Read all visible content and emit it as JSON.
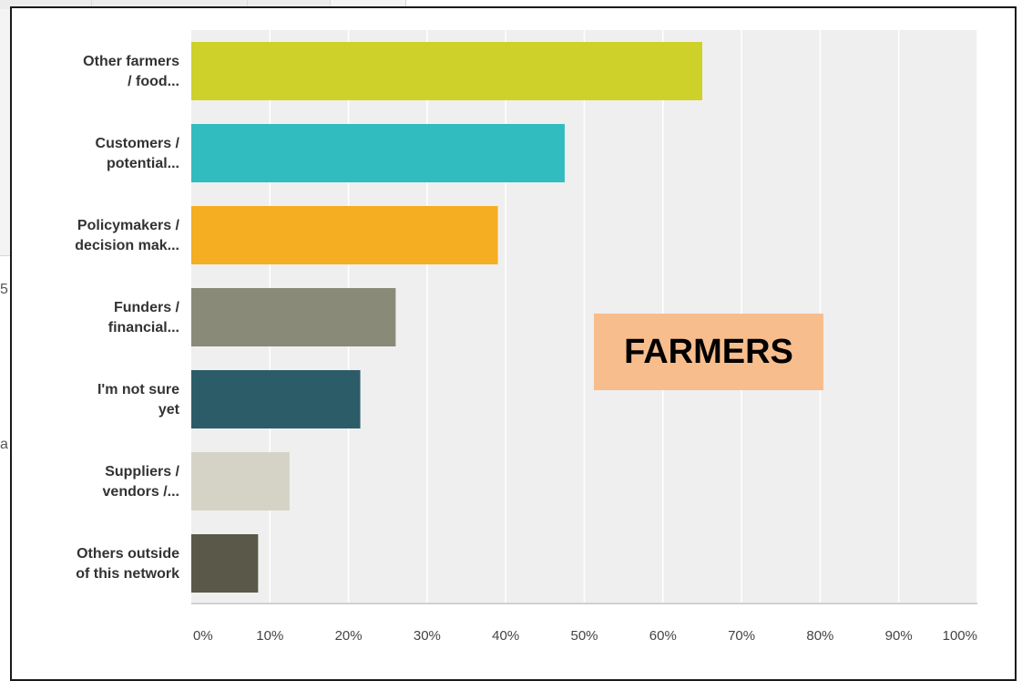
{
  "background_fragments": [
    "5",
    "a"
  ],
  "overlay_label": "FARMERS",
  "colors": {
    "plot_background": "#efefef",
    "gridline": "#ffffff",
    "axis": "#d0d0d0",
    "overlay_background": "#f8bd8c"
  },
  "chart_data": {
    "type": "bar",
    "orientation": "horizontal",
    "title": "",
    "xlabel": "",
    "ylabel": "",
    "categories": [
      [
        "Other farmers",
        "/ food..."
      ],
      [
        "Customers /",
        "potential..."
      ],
      [
        "Policymakers /",
        "decision mak..."
      ],
      [
        "Funders /",
        "financial..."
      ],
      [
        "I'm not sure",
        "yet"
      ],
      [
        "Suppliers /",
        "vendors /..."
      ],
      [
        "Others outside",
        "of this network"
      ]
    ],
    "values": [
      65,
      47.5,
      39,
      26,
      21.5,
      12.5,
      8.5
    ],
    "bar_colors": [
      "#cdd12a",
      "#31bcbf",
      "#f5ad22",
      "#8a8a79",
      "#2d5c69",
      "#d4d3c6",
      "#5a5848"
    ],
    "xlim": [
      0,
      100
    ],
    "ticks": [
      "0%",
      "10%",
      "20%",
      "30%",
      "40%",
      "50%",
      "60%",
      "70%",
      "80%",
      "90%",
      "100%"
    ],
    "grid": true,
    "legend": "none"
  }
}
